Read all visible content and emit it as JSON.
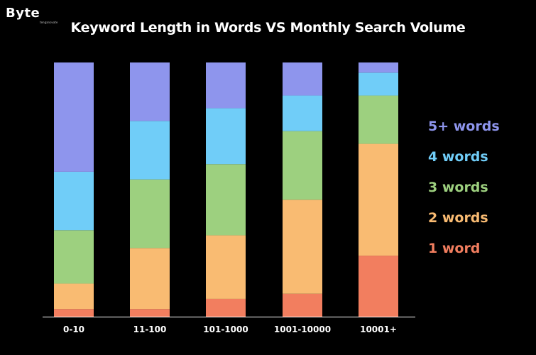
{
  "brand": {
    "logo_text": "Byte",
    "logo_subtext": "tenganovate"
  },
  "chart_data": {
    "type": "bar",
    "stacked": true,
    "normalized_to_100": true,
    "title": "Keyword Length in Words VS Monthly Search Volume",
    "xlabel": "",
    "ylabel": "",
    "categories": [
      "0-10",
      "11-100",
      "101-1000",
      "1001-10000",
      "10001+"
    ],
    "series": [
      {
        "name": "1 word",
        "color": "#f27e5f",
        "values": [
          3,
          3,
          7,
          9,
          24
        ]
      },
      {
        "name": "2 words",
        "color": "#f9bb72",
        "values": [
          10,
          24,
          25,
          37,
          44
        ]
      },
      {
        "name": "3 words",
        "color": "#9dd07f",
        "values": [
          21,
          27,
          28,
          27,
          19
        ]
      },
      {
        "name": "4 words",
        "color": "#70cdf8",
        "values": [
          23,
          23,
          22,
          14,
          9
        ]
      },
      {
        "name": "5+ words",
        "color": "#8e95ed",
        "values": [
          43,
          23,
          18,
          13,
          4
        ]
      }
    ],
    "ylim": [
      0,
      100
    ],
    "grid": false,
    "legend_position": "right"
  }
}
